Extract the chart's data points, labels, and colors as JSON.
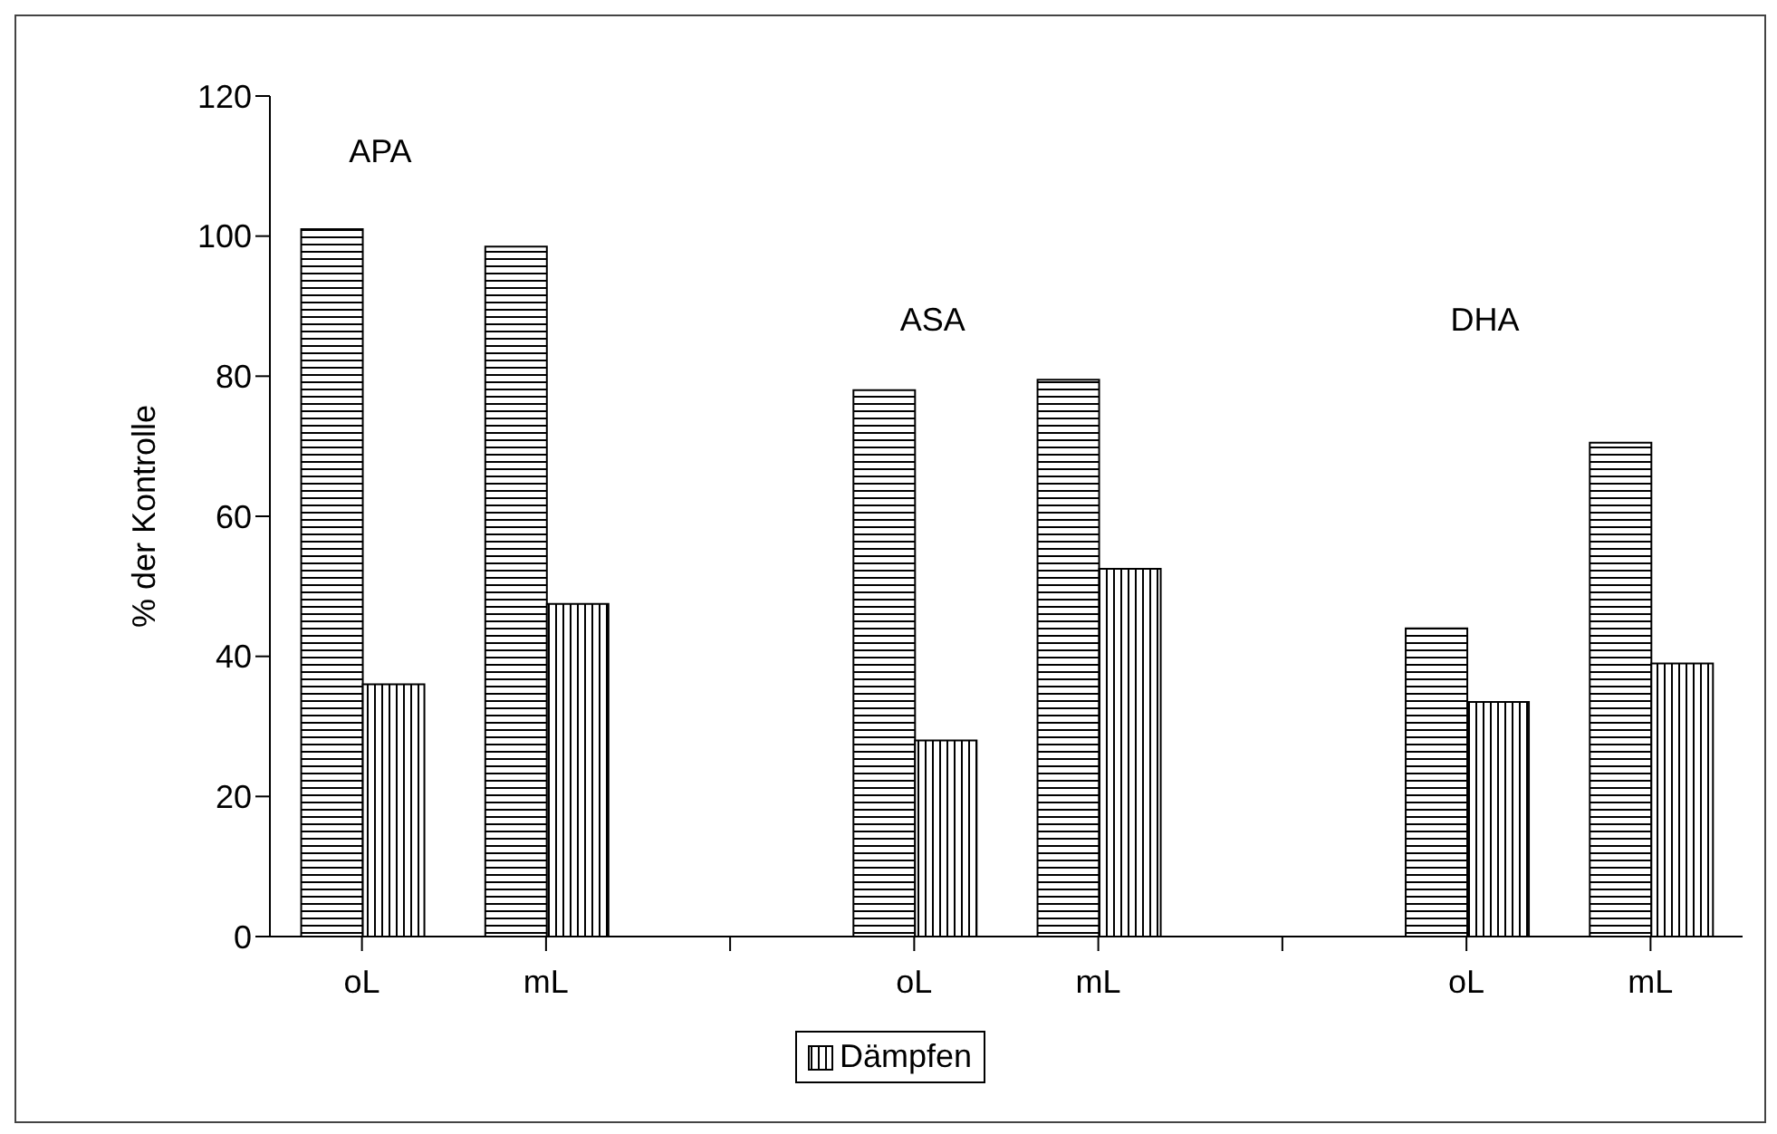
{
  "chart_data": {
    "type": "bar",
    "ylabel": "% der Kontrolle",
    "categories": [
      "oL",
      "mL",
      null,
      "oL",
      "mL",
      null,
      "oL",
      "mL"
    ],
    "series": [
      {
        "color": "#000000",
        "values": [
          101,
          98.5,
          null,
          78,
          79.5,
          null,
          44,
          70.5
        ]
      },
      {
        "name": "Dämpfen",
        "color": "#000000",
        "values": [
          36,
          47.5,
          null,
          28,
          52.5,
          null,
          33.5,
          39
        ]
      }
    ],
    "annotations": [
      "APA",
      "ASA",
      "DHA"
    ],
    "ylim": [
      0,
      120
    ],
    "yticks": [
      0,
      20,
      40,
      60,
      80,
      100,
      120
    ],
    "legend": "bottom"
  }
}
